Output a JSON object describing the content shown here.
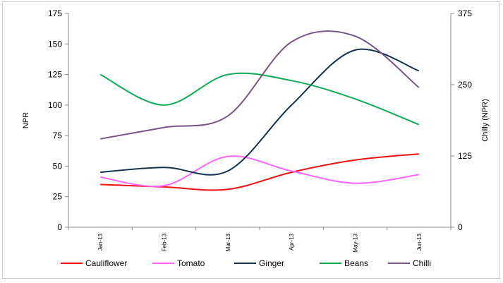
{
  "chart_data": {
    "type": "line",
    "categories": [
      "Jan-13",
      "Feb-13",
      "Mar-13",
      "Apr-13",
      "May-13",
      "Jun-13"
    ],
    "ylabel": "NPR",
    "ylabel_right": "Chilly (NPR)",
    "ylim": [
      0,
      175
    ],
    "yticks": [
      0,
      25,
      50,
      75,
      100,
      125,
      150,
      175
    ],
    "ylim_right": [
      0,
      375
    ],
    "yticks_right": [
      0,
      125,
      250,
      375
    ],
    "legend_position": "bottom",
    "grid": false,
    "series": [
      {
        "name": "Cauliflower",
        "axis": "left",
        "color": "#ee1111",
        "values": [
          35,
          33,
          31,
          45,
          55,
          60
        ]
      },
      {
        "name": "Tomato",
        "axis": "left",
        "color": "#ff66ff",
        "values": [
          41,
          34,
          58,
          46,
          36,
          43
        ]
      },
      {
        "name": "Ginger",
        "axis": "left",
        "color": "#14324f",
        "values": [
          45,
          49,
          46,
          100,
          145,
          128
        ]
      },
      {
        "name": "Beans",
        "axis": "left",
        "color": "#11aa55",
        "values": [
          125,
          100,
          125,
          120,
          105,
          84
        ]
      },
      {
        "name": "Chilli",
        "axis": "right",
        "color": "#775588",
        "values": [
          155,
          175,
          195,
          325,
          335,
          245
        ]
      }
    ]
  }
}
